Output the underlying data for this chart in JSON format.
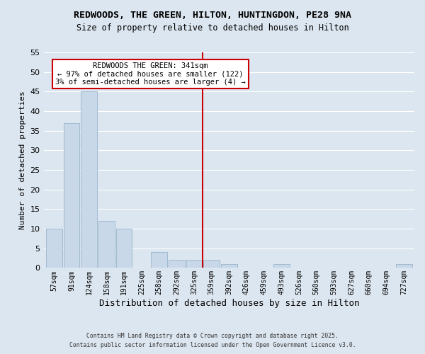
{
  "title": "REDWOODS, THE GREEN, HILTON, HUNTINGDON, PE28 9NA",
  "subtitle": "Size of property relative to detached houses in Hilton",
  "xlabel": "Distribution of detached houses by size in Hilton",
  "ylabel": "Number of detached properties",
  "bar_color": "#c8d8e8",
  "bar_edge_color": "#9ab5cb",
  "background_color": "#dce6f0",
  "grid_color": "#ffffff",
  "categories": [
    "57sqm",
    "91sqm",
    "124sqm",
    "158sqm",
    "191sqm",
    "225sqm",
    "258sqm",
    "292sqm",
    "325sqm",
    "359sqm",
    "392sqm",
    "426sqm",
    "459sqm",
    "493sqm",
    "526sqm",
    "560sqm",
    "593sqm",
    "627sqm",
    "660sqm",
    "694sqm",
    "727sqm"
  ],
  "values": [
    10,
    37,
    45,
    12,
    10,
    0,
    4,
    2,
    2,
    2,
    1,
    0,
    0,
    1,
    0,
    0,
    0,
    0,
    0,
    0,
    1
  ],
  "ylim": [
    0,
    55
  ],
  "yticks": [
    0,
    5,
    10,
    15,
    20,
    25,
    30,
    35,
    40,
    45,
    50,
    55
  ],
  "vline_index": 8.5,
  "vline_color": "#cc0000",
  "annotation_title": "REDWOODS THE GREEN: 341sqm",
  "annotation_line1": "← 97% of detached houses are smaller (122)",
  "annotation_line2": "3% of semi-detached houses are larger (4) →",
  "annotation_box_facecolor": "#ffffff",
  "annotation_box_edgecolor": "#cc0000",
  "footer1": "Contains HM Land Registry data © Crown copyright and database right 2025.",
  "footer2": "Contains public sector information licensed under the Open Government Licence v3.0."
}
